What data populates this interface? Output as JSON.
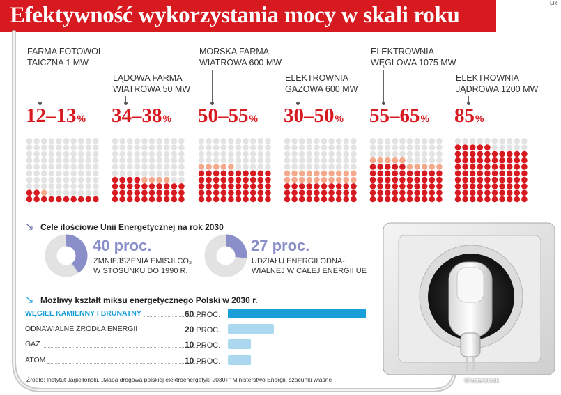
{
  "title": "Efektywność wykorzystania mocy w skali roku",
  "corner_tag": "LR",
  "colors": {
    "red": "#d71920",
    "peach": "#f2a98c",
    "grey_dot": "#e3e3e3",
    "purple": "#8a8ec9",
    "blue_bar": "#1a9fd8",
    "light_blue_bar": "#a9d8ef"
  },
  "plants": [
    {
      "label": "Farma fotowol-\ntaiczna 1 MW",
      "range": "12–13",
      "low": 12,
      "high": 13
    },
    {
      "label": "Lądowa farma\nwiatrowa 50 MW",
      "range": "34–38",
      "low": 34,
      "high": 38
    },
    {
      "label": "Morska farma\nwiatrowa 600 MW",
      "range": "50–55",
      "low": 50,
      "high": 55
    },
    {
      "label": "Elektrownia\ngazowa 600 MW",
      "range": "30–50",
      "low": 30,
      "high": 50
    },
    {
      "label": "Elektrownia\nwęglowa 1075 MW",
      "range": "55–65",
      "low": 55,
      "high": 65
    },
    {
      "label": "Elektrownia\njądrowa 1200 MW",
      "range": "85",
      "low": 85,
      "high": 85
    }
  ],
  "percent_sign": "%",
  "targets": {
    "title": "Cele ilościowe Unii Energetycznej na rok 2030",
    "items": [
      {
        "value_label": "40 proc.",
        "value": 40,
        "desc": "Zmniejszenia emisji CO₂\nw stosunku do 1990 r."
      },
      {
        "value_label": "27 proc.",
        "value": 27,
        "desc": "udziału energii odna-\nwialnej w całej energii UE"
      }
    ]
  },
  "mix": {
    "title": "Możliwy kształt miksu energetycznego Polski w 2030 r.",
    "unit": "proc."
  },
  "chart_data": [
    {
      "type": "bar",
      "title": "Efektywność wykorzystania mocy w skali roku",
      "categories": [
        "Farma fotowoltaiczna 1 MW",
        "Lądowa farma wiatrowa 50 MW",
        "Morska farma wiatrowa 600 MW",
        "Elektrownia gazowa 600 MW",
        "Elektrownia węglowa 1075 MW",
        "Elektrownia jądrowa 1200 MW"
      ],
      "series": [
        {
          "values": [
            12,
            34,
            50,
            30,
            55,
            85
          ]
        },
        {
          "values": [
            13,
            38,
            55,
            50,
            65,
            85
          ]
        }
      ],
      "ylim": [
        0,
        100
      ]
    },
    {
      "type": "bar",
      "title": "Możliwy kształt miksu energetycznego Polski w 2030 r.",
      "categories": [
        "Węgiel kamienny i brunatny",
        "Odnawialne źródła energii",
        "Gaz",
        "Atom"
      ],
      "values": [
        60,
        20,
        10,
        10
      ],
      "value_labels": [
        "60",
        "20",
        "10",
        "10"
      ]
    }
  ],
  "source": "Źródło: Instytut Jagielloński, „Mapa drogowa polskiej elektroenergetyki 2030+” Ministerstwo Energii, szacunki własne",
  "credit": "Shutterstock"
}
